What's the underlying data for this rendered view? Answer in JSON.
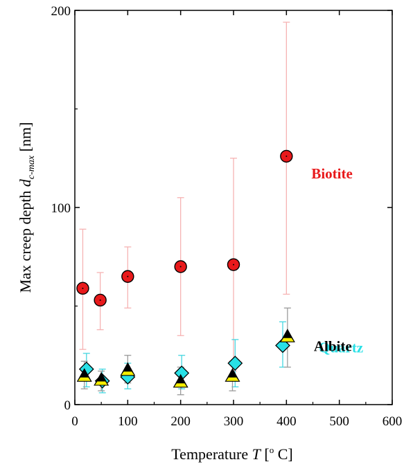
{
  "chart_data": {
    "type": "scatter",
    "xlabel_text": "Temperature ",
    "xlabel_var": "T",
    "xlabel_unit_open": " [",
    "xlabel_unit_sup": "o",
    "xlabel_unit_close": " C]",
    "ylabel_text": "Max creep depth ",
    "ylabel_var": "d",
    "ylabel_sub": "c-max",
    "ylabel_unit": " [nm]",
    "xlim": [
      0,
      600
    ],
    "ylim": [
      0,
      200
    ],
    "xticks": [
      0,
      100,
      200,
      300,
      400,
      500,
      600
    ],
    "xtick_labels": [
      "0",
      "100",
      "200",
      "300",
      "400",
      "500",
      "600"
    ],
    "yticks": [
      0,
      100,
      200
    ],
    "ytick_labels": [
      "0",
      "100",
      "200"
    ],
    "grid": false,
    "series": [
      {
        "name": "Biotite",
        "color": "#e8191b",
        "error_color": "#f6b3b3",
        "marker": "circle",
        "points": [
          {
            "x": 15,
            "y": 59,
            "lo": 28,
            "hi": 89
          },
          {
            "x": 48,
            "y": 53,
            "lo": 38,
            "hi": 67
          },
          {
            "x": 100,
            "y": 65,
            "lo": 49,
            "hi": 80
          },
          {
            "x": 200,
            "y": 70,
            "lo": 35,
            "hi": 105
          },
          {
            "x": 300,
            "y": 71,
            "lo": 17,
            "hi": 125
          },
          {
            "x": 400,
            "y": 126,
            "lo": 56,
            "hi": 194
          }
        ]
      },
      {
        "name": "Quartz",
        "color": "#28e0e6",
        "error_color": "#45d6e0",
        "marker": "diamond",
        "points": [
          {
            "x": 22,
            "y": 18,
            "lo": 9,
            "hi": 26
          },
          {
            "x": 52,
            "y": 12,
            "lo": 6,
            "hi": 18
          },
          {
            "x": 100,
            "y": 14,
            "lo": 8,
            "hi": 21
          },
          {
            "x": 202,
            "y": 16,
            "lo": 8,
            "hi": 25
          },
          {
            "x": 303,
            "y": 21,
            "lo": 9,
            "hi": 33
          },
          {
            "x": 393,
            "y": 30,
            "lo": 19,
            "hi": 42
          }
        ]
      },
      {
        "name": "Albite",
        "color": "#000000",
        "error_color": "#9a9a9a",
        "marker": "triangle",
        "points": [
          {
            "x": 18,
            "y": 15,
            "lo": 8,
            "hi": 22
          },
          {
            "x": 50,
            "y": 13,
            "lo": 7,
            "hi": 17
          },
          {
            "x": 100,
            "y": 18,
            "lo": 11,
            "hi": 25
          },
          {
            "x": 200,
            "y": 12,
            "lo": 5,
            "hi": 19
          },
          {
            "x": 298,
            "y": 15,
            "lo": 7,
            "hi": 22
          },
          {
            "x": 402,
            "y": 35,
            "lo": 19,
            "hi": 49
          }
        ]
      }
    ]
  }
}
